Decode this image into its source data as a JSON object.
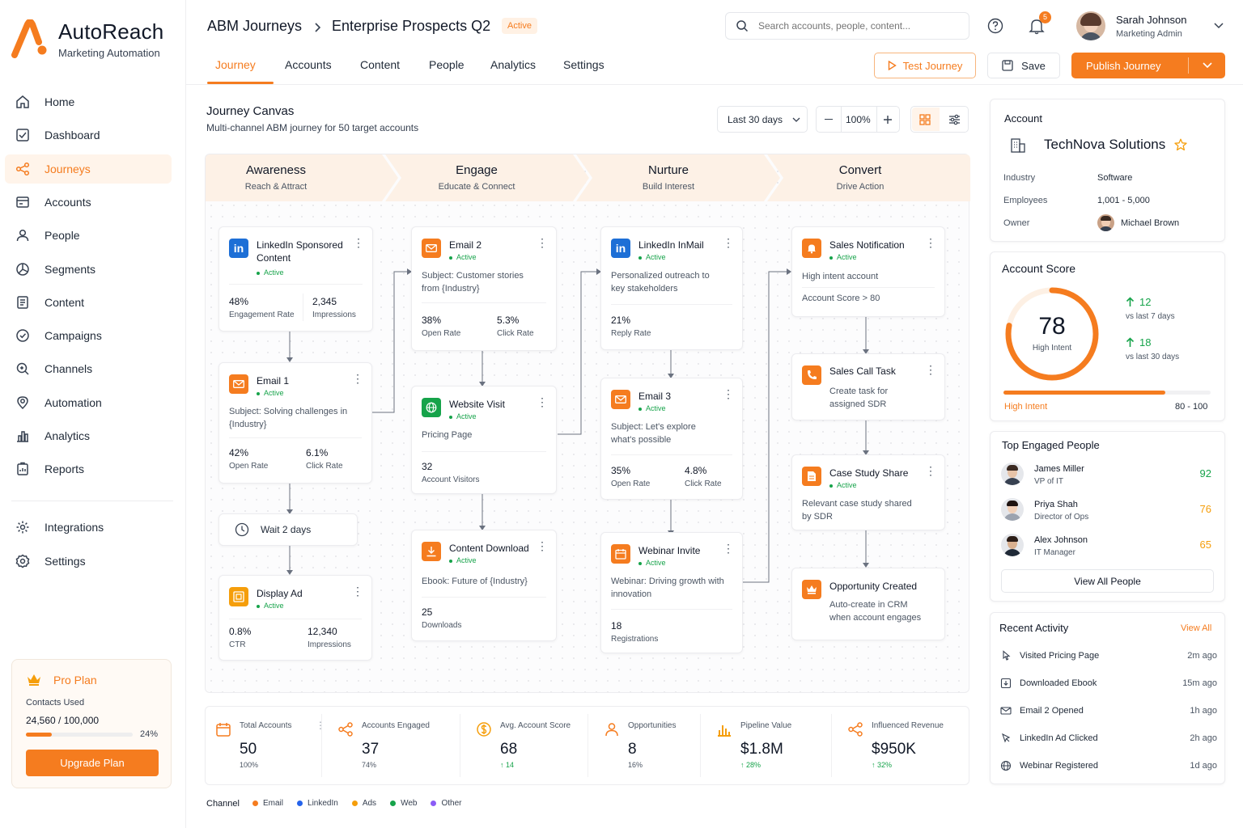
{
  "brand": {
    "name": "AutoReach",
    "tagline": "Marketing Automation",
    "accent": "#f57c1f"
  },
  "nav": {
    "items": [
      {
        "label": "Home",
        "icon": "home-icon"
      },
      {
        "label": "Dashboard",
        "icon": "dashboard-icon"
      },
      {
        "label": "Journeys",
        "icon": "journeys-icon",
        "active": true
      },
      {
        "label": "Accounts",
        "icon": "accounts-icon"
      },
      {
        "label": "People",
        "icon": "people-icon"
      },
      {
        "label": "Segments",
        "icon": "segments-icon"
      },
      {
        "label": "Content",
        "icon": "content-icon"
      },
      {
        "label": "Campaigns",
        "icon": "campaigns-icon"
      },
      {
        "label": "Channels",
        "icon": "channels-icon"
      },
      {
        "label": "Automation",
        "icon": "automation-icon"
      },
      {
        "label": "Analytics",
        "icon": "analytics-icon"
      },
      {
        "label": "Reports",
        "icon": "reports-icon"
      }
    ],
    "secondary": [
      {
        "label": "Integrations",
        "icon": "integrations-icon"
      },
      {
        "label": "Settings",
        "icon": "settings-icon"
      }
    ]
  },
  "plan": {
    "title": "Pro Plan",
    "contacts_label": "Contacts Used",
    "contacts_value": "24,560 / 100,000",
    "percent_label": "24%",
    "usage_fraction": 0.24,
    "upgrade_label": "Upgrade Plan"
  },
  "header": {
    "crumb_root": "ABM Journeys",
    "crumb_current": "Enterprise Prospects Q2",
    "status": "Active",
    "search_placeholder": "Search accounts, people, content...",
    "notif_count": "5",
    "user_name": "Sarah Johnson",
    "user_role": "Marketing Admin",
    "tabs": [
      "Journey",
      "Accounts",
      "Content",
      "People",
      "Analytics",
      "Settings"
    ],
    "test_label": "Test Journey",
    "save_label": "Save",
    "publish_label": "Publish Journey"
  },
  "canvas": {
    "title": "Journey Canvas",
    "subtitle": "Multi-channel ABM journey for 50 target accounts",
    "range": "Last 30 days",
    "zoom": "100%",
    "stages": [
      {
        "title": "Awareness",
        "subtitle": "Reach & Attract"
      },
      {
        "title": "Engage",
        "subtitle": "Educate & Connect"
      },
      {
        "title": "Nurture",
        "subtitle": "Build Interest"
      },
      {
        "title": "Convert",
        "subtitle": "Drive Action"
      }
    ],
    "nodes": {
      "linkedin_sponsored": {
        "title": "LinkedIn Sponsored Content",
        "status": "Active",
        "s1v": "48%",
        "s1l": "Engagement Rate",
        "s2v": "2,345",
        "s2l": "Impressions"
      },
      "email1": {
        "title": "Email 1",
        "status": "Active",
        "desc": "Subject: Solving challenges in {Industry}",
        "s1v": "42%",
        "s1l": "Open Rate",
        "s2v": "6.1%",
        "s2l": "Click Rate"
      },
      "wait": {
        "label": "Wait 2 days"
      },
      "display_ad": {
        "title": "Display Ad",
        "status": "Active",
        "s1v": "0.8%",
        "s1l": "CTR",
        "s2v": "12,340",
        "s2l": "Impressions"
      },
      "email2": {
        "title": "Email 2",
        "status": "Active",
        "desc": "Subject: Customer stories from {Industry}",
        "s1v": "38%",
        "s1l": "Open Rate",
        "s2v": "5.3%",
        "s2l": "Click Rate"
      },
      "website_visit": {
        "title": "Website Visit",
        "status": "Active",
        "desc": "Pricing Page",
        "s1v": "32",
        "s1l": "Account Visitors"
      },
      "content_download": {
        "title": "Content Download",
        "status": "Active",
        "desc": "Ebook: Future of {Industry}",
        "s1v": "25",
        "s1l": "Downloads"
      },
      "inmail": {
        "title": "LinkedIn InMail",
        "status": "Active",
        "desc": "Personalized outreach to key stakeholders",
        "s1v": "21%",
        "s1l": "Reply Rate"
      },
      "email3": {
        "title": "Email 3",
        "status": "Active",
        "desc": "Subject: Let's explore what's possible",
        "s1v": "35%",
        "s1l": "Open Rate",
        "s2v": "4.8%",
        "s2l": "Click Rate"
      },
      "webinar": {
        "title": "Webinar Invite",
        "status": "Active",
        "desc": "Webinar: Driving growth with innovation",
        "s1v": "18",
        "s1l": "Registrations"
      },
      "sales_notif": {
        "title": "Sales Notification",
        "status": "Active",
        "desc1": "High intent account",
        "desc2": "Account Score > 80"
      },
      "sales_call": {
        "title": "Sales Call Task",
        "desc": "Create task for assigned SDR"
      },
      "case_study": {
        "title": "Case Study Share",
        "status": "Active",
        "desc": "Relevant case study shared by SDR"
      },
      "opportunity": {
        "title": "Opportunity Created",
        "desc": "Auto-create in CRM when account engages"
      }
    }
  },
  "kpis": [
    {
      "title": "Total Accounts",
      "value": "50",
      "sub": "100%",
      "icon": "calendar-icon"
    },
    {
      "title": "Accounts Engaged",
      "value": "37",
      "sub": "74%",
      "icon": "share-icon"
    },
    {
      "title": "Avg. Account Score",
      "value": "68",
      "sub": "↑ 14",
      "icon": "dollar-icon"
    },
    {
      "title": "Opportunities",
      "value": "8",
      "sub": "16%",
      "icon": "user-icon"
    },
    {
      "title": "Pipeline Value",
      "value": "$1.8M",
      "sub": "↑ 28%",
      "icon": "bar-chart-icon"
    },
    {
      "title": "Influenced Revenue",
      "value": "$950K",
      "sub": "↑ 32%",
      "icon": "share-icon"
    }
  ],
  "legend": {
    "label": "Channel",
    "items": [
      {
        "name": "Email",
        "color": "#f57c1f"
      },
      {
        "name": "LinkedIn",
        "color": "#2563eb"
      },
      {
        "name": "Ads",
        "color": "#f59e0b"
      },
      {
        "name": "Web",
        "color": "#16a34a"
      },
      {
        "name": "Other",
        "color": "#8b5cf6"
      }
    ]
  },
  "account": {
    "label": "Account",
    "name": "TechNova Solutions",
    "industry_label": "Industry",
    "industry": "Software",
    "employees_label": "Employees",
    "employees": "1,001 - 5,000",
    "owner_label": "Owner",
    "owner": "Michael Brown"
  },
  "score": {
    "title": "Account Score",
    "value": "78",
    "value_num": 78,
    "caption": "High Intent",
    "d7": "12",
    "d7_label": "vs last 7 days",
    "d30": "18",
    "d30_label": "vs last 30 days",
    "band_label": "High Intent",
    "band_range": "80 - 100"
  },
  "people": {
    "title": "Top Engaged People",
    "list": [
      {
        "name": "James Miller",
        "role": "VP of IT",
        "score": "92"
      },
      {
        "name": "Priya Shah",
        "role": "Director of Ops",
        "score": "76"
      },
      {
        "name": "Alex Johnson",
        "role": "IT Manager",
        "score": "65"
      }
    ],
    "view_all": "View All People"
  },
  "activity": {
    "title": "Recent Activity",
    "view_all": "View All",
    "list": [
      {
        "label": "Visited Pricing Page",
        "time": "2m ago"
      },
      {
        "label": "Downloaded Ebook",
        "time": "15m ago"
      },
      {
        "label": "Email 2 Opened",
        "time": "1h ago"
      },
      {
        "label": "LinkedIn Ad Clicked",
        "time": "2h ago"
      },
      {
        "label": "Webinar Registered",
        "time": "1d ago"
      }
    ]
  }
}
